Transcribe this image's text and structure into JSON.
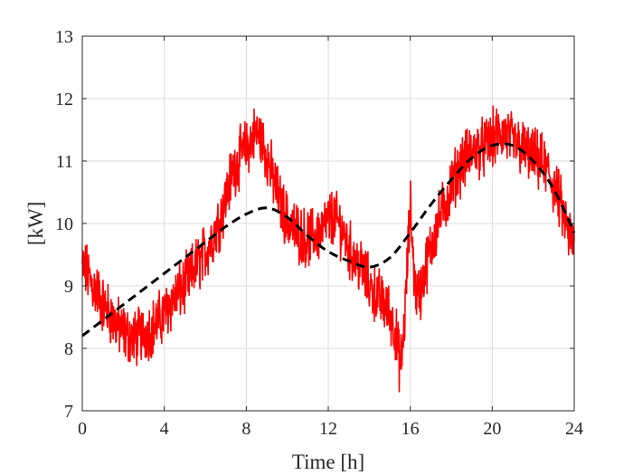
{
  "chart_data": {
    "type": "line",
    "title": "",
    "xlabel": "Time [h]",
    "ylabel": "[kW]",
    "xlim": [
      0,
      24
    ],
    "ylim": [
      7,
      13
    ],
    "xticks": [
      0,
      4,
      8,
      12,
      16,
      20,
      24
    ],
    "yticks": [
      7,
      8,
      9,
      10,
      11,
      12,
      13
    ],
    "grid": true,
    "legend": "none",
    "series": [
      {
        "color": "#ff0000",
        "style": "solid",
        "noisy": true,
        "x": [
          0,
          0.25,
          0.5,
          0.75,
          1.0,
          1.25,
          1.5,
          1.75,
          2.0,
          2.25,
          2.5,
          2.75,
          3.0,
          3.25,
          3.5,
          3.75,
          4.0,
          4.25,
          4.5,
          4.75,
          5.0,
          5.25,
          5.5,
          5.75,
          6.0,
          6.25,
          6.5,
          6.75,
          7.0,
          7.25,
          7.5,
          7.75,
          8.0,
          8.25,
          8.5,
          8.75,
          9.0,
          9.25,
          9.5,
          9.75,
          10.0,
          10.25,
          10.5,
          10.75,
          11.0,
          11.25,
          11.5,
          11.75,
          12.0,
          12.25,
          12.5,
          12.75,
          13.0,
          13.25,
          13.5,
          13.75,
          14.0,
          14.25,
          14.5,
          14.75,
          15.0,
          15.25,
          15.4,
          15.5,
          15.6,
          15.75,
          15.9,
          16.0,
          16.25,
          16.5,
          16.75,
          17.0,
          17.25,
          17.5,
          17.75,
          18.0,
          18.25,
          18.5,
          18.75,
          19.0,
          19.25,
          19.5,
          19.75,
          20.0,
          20.25,
          20.5,
          20.75,
          21.0,
          21.25,
          21.5,
          21.75,
          22.0,
          22.25,
          22.5,
          22.75,
          23.0,
          23.25,
          23.5,
          23.75,
          24.0
        ],
        "y": [
          9.3,
          9.2,
          9.0,
          8.9,
          8.7,
          8.6,
          8.45,
          8.35,
          8.25,
          8.2,
          8.15,
          8.2,
          8.25,
          8.3,
          8.35,
          8.45,
          8.55,
          8.7,
          8.8,
          8.9,
          9.0,
          9.15,
          9.3,
          9.4,
          9.55,
          9.7,
          9.9,
          10.1,
          10.4,
          10.75,
          10.95,
          11.1,
          11.2,
          11.35,
          11.45,
          11.35,
          11.1,
          10.8,
          10.5,
          10.25,
          10.05,
          9.95,
          9.85,
          9.8,
          9.75,
          9.8,
          9.85,
          9.9,
          10.05,
          10.1,
          10.0,
          9.85,
          9.6,
          9.45,
          9.35,
          9.2,
          9.0,
          8.9,
          8.8,
          8.7,
          8.55,
          8.3,
          8.0,
          7.7,
          7.9,
          8.6,
          9.6,
          10.3,
          8.9,
          8.9,
          9.3,
          9.6,
          9.9,
          10.15,
          10.35,
          10.6,
          10.8,
          10.95,
          11.05,
          11.15,
          11.2,
          11.2,
          11.25,
          11.35,
          11.4,
          11.45,
          11.4,
          11.3,
          11.25,
          11.2,
          11.1,
          11.05,
          11.0,
          10.95,
          10.8,
          10.6,
          10.4,
          10.1,
          9.8,
          9.65
        ]
      },
      {
        "color": "#000000",
        "style": "dashed",
        "x": [
          0,
          1,
          2,
          3,
          4,
          5,
          6,
          7,
          8,
          9,
          10,
          11,
          12,
          13,
          14,
          15,
          16,
          17,
          18,
          19,
          20,
          21,
          22,
          23,
          24
        ],
        "y": [
          8.2,
          8.45,
          8.7,
          8.95,
          9.2,
          9.45,
          9.7,
          9.95,
          10.15,
          10.25,
          10.1,
          9.8,
          9.55,
          9.4,
          9.3,
          9.45,
          9.85,
          10.3,
          10.7,
          11.05,
          11.25,
          11.25,
          11.0,
          10.55,
          9.85
        ]
      }
    ]
  }
}
